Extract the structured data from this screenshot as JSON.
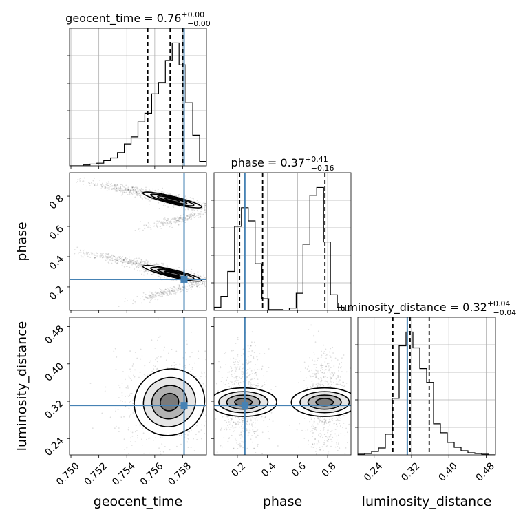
{
  "chart_data": {
    "type": "corner",
    "parameters": [
      "geocent_time",
      "phase",
      "luminosity_distance"
    ],
    "axis_labels": {
      "geocent_time": "geocent_time",
      "phase": "phase",
      "luminosity_distance": "luminosity_distance"
    },
    "titles": {
      "geocent_time": {
        "name": "geocent_time",
        "value": "0.76",
        "plus": "+0.00",
        "minus": "−0.00"
      },
      "phase": {
        "name": "phase",
        "value": "0.37",
        "plus": "+0.41",
        "minus": "−0.16"
      },
      "luminosity_distance": {
        "name": "luminosity_distance",
        "value": "0.32",
        "plus": "+0.04",
        "minus": "−0.04"
      }
    },
    "ranges": {
      "geocent_time": [
        0.7499,
        0.7597
      ],
      "phase": [
        0.045,
        0.955
      ],
      "luminosity_distance": [
        0.205,
        0.5
      ]
    },
    "ticks": {
      "geocent_time": [
        0.75,
        0.752,
        0.754,
        0.756,
        0.758
      ],
      "phase": [
        0.2,
        0.4,
        0.6,
        0.8
      ],
      "luminosity_distance": [
        0.24,
        0.32,
        0.4,
        0.48
      ]
    },
    "tick_labels": {
      "geocent_time": [
        "0.750",
        "0.752",
        "0.754",
        "0.756",
        "0.758"
      ],
      "phase": [
        "0.2",
        "0.4",
        "0.6",
        "0.8"
      ],
      "luminosity_distance": [
        "0.24",
        "0.32",
        "0.40",
        "0.48"
      ]
    },
    "injection": {
      "geocent_time": 0.7581,
      "phase": 0.25,
      "luminosity_distance": 0.311
    },
    "quantiles": {
      "geocent_time": [
        0.7555,
        0.7571,
        0.758
      ],
      "phase": [
        0.215,
        0.368,
        0.782
      ],
      "luminosity_distance": [
        0.28,
        0.317,
        0.358
      ]
    },
    "histograms": {
      "geocent_time": {
        "edges": [
          0.7499,
          0.75039,
          0.75088,
          0.75137,
          0.75186,
          0.75235,
          0.75284,
          0.75333,
          0.75382,
          0.75431,
          0.7548,
          0.75529,
          0.75578,
          0.75627,
          0.75676,
          0.75725,
          0.75774,
          0.75823,
          0.75872,
          0.75921,
          0.7597
        ],
        "counts": [
          0,
          0,
          1,
          2,
          3,
          6,
          9,
          15,
          25,
          33,
          50,
          60,
          82,
          95,
          120,
          140,
          115,
          72,
          35,
          5
        ]
      },
      "phase": {
        "edges": [
          0.045,
          0.0905,
          0.136,
          0.1815,
          0.227,
          0.2725,
          0.318,
          0.3635,
          0.409,
          0.4545,
          0.5,
          0.5455,
          0.591,
          0.6365,
          0.682,
          0.7275,
          0.773,
          0.8185,
          0.864,
          0.9095,
          0.955
        ],
        "counts": [
          4,
          18,
          50,
          108,
          132,
          115,
          60,
          15,
          1,
          1,
          0,
          3,
          22,
          85,
          148,
          158,
          88,
          20,
          4,
          0
        ]
      },
      "luminosity_distance": {
        "edges": [
          0.205,
          0.21975,
          0.2345,
          0.24925,
          0.264,
          0.27875,
          0.2935,
          0.30825,
          0.323,
          0.33775,
          0.3525,
          0.36725,
          0.382,
          0.39675,
          0.4115,
          0.42625,
          0.441,
          0.45575,
          0.4705,
          0.48525,
          0.5
        ],
        "counts": [
          1,
          2,
          5,
          10,
          30,
          82,
          158,
          178,
          155,
          125,
          105,
          45,
          32,
          18,
          11,
          6,
          3,
          2,
          1,
          0
        ]
      }
    },
    "clusters": {
      "geocent_time|phase": [
        {
          "mx": 0.75725,
          "my": 0.775,
          "sx": 0.001,
          "sy": 0.025,
          "rho": -0.88,
          "w": 0.5
        },
        {
          "mx": 0.75725,
          "my": 0.29,
          "sx": 0.001,
          "sy": 0.025,
          "rho": -0.88,
          "w": 0.5
        }
      ],
      "geocent_time|luminosity_distance": [
        {
          "mx": 0.75705,
          "my": 0.318,
          "sx": 0.0012,
          "sy": 0.034,
          "rho": 0.05,
          "w": 1.0
        }
      ],
      "phase|luminosity_distance": [
        {
          "mx": 0.24,
          "my": 0.318,
          "sx": 0.045,
          "sy": 0.034,
          "rho": 0.0,
          "w": 0.5
        },
        {
          "mx": 0.78,
          "my": 0.318,
          "sx": 0.045,
          "sy": 0.034,
          "rho": 0.0,
          "w": 0.5
        }
      ]
    },
    "tail_clusters": {
      "geocent_time|phase": [
        {
          "mx": 0.7535,
          "my": 0.85,
          "sx": 0.001,
          "sy": 0.02,
          "rho": -0.9,
          "w": 1
        },
        {
          "mx": 0.7535,
          "my": 0.38,
          "sx": 0.001,
          "sy": 0.02,
          "rho": -0.9,
          "w": 1
        },
        {
          "mx": 0.757,
          "my": 0.17,
          "sx": 0.0008,
          "sy": 0.02,
          "rho": 0.9,
          "w": 1
        },
        {
          "mx": 0.7575,
          "my": 0.64,
          "sx": 0.0008,
          "sy": 0.02,
          "rho": 0.9,
          "w": 1
        }
      ]
    }
  },
  "colors": {
    "injection": "#4682b4",
    "hist": "#000000",
    "grid": "#b0b0b0",
    "density": "#000000"
  }
}
